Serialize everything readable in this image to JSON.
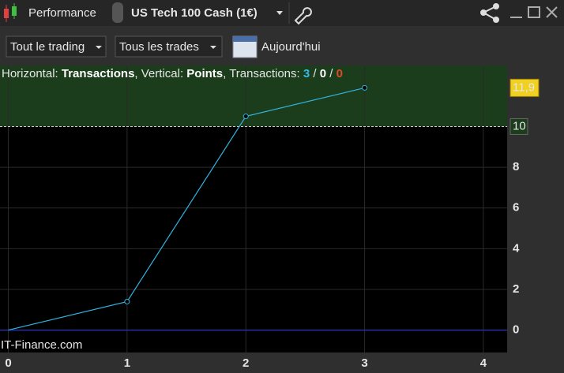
{
  "header": {
    "title": "Performance",
    "instrument": "US Tech 100 Cash (1€)"
  },
  "toolbar": {
    "scope": "Tout le trading",
    "trades": "Tous les trades",
    "period": "Aujourd'hui"
  },
  "chart_data": {
    "type": "line",
    "info": {
      "h_label": "Horizontal:",
      "h_value": "Transactions",
      "v_label": ", Vertical:",
      "v_value": "Points",
      "t_label": ", Transactions:",
      "counts": [
        3,
        0,
        0
      ],
      "separator": "/"
    },
    "watermark": "IT-Finance.com",
    "x": [
      0,
      1,
      2,
      3
    ],
    "values": [
      0,
      1.4,
      10.5,
      11.9
    ],
    "value_labels": [
      null,
      null,
      null,
      "11,9"
    ],
    "color": "#2fb4e0",
    "zone_threshold": 10,
    "zone_color": "#1c3d1c",
    "zero_line_color": "#2a2fa0",
    "xlim": [
      -0.07,
      4.2
    ],
    "xticks": [
      0,
      1,
      2,
      3,
      4
    ],
    "ylim": [
      -1.1,
      13
    ],
    "yticks": [
      0,
      2,
      4,
      6,
      8,
      10
    ],
    "grid": true
  }
}
